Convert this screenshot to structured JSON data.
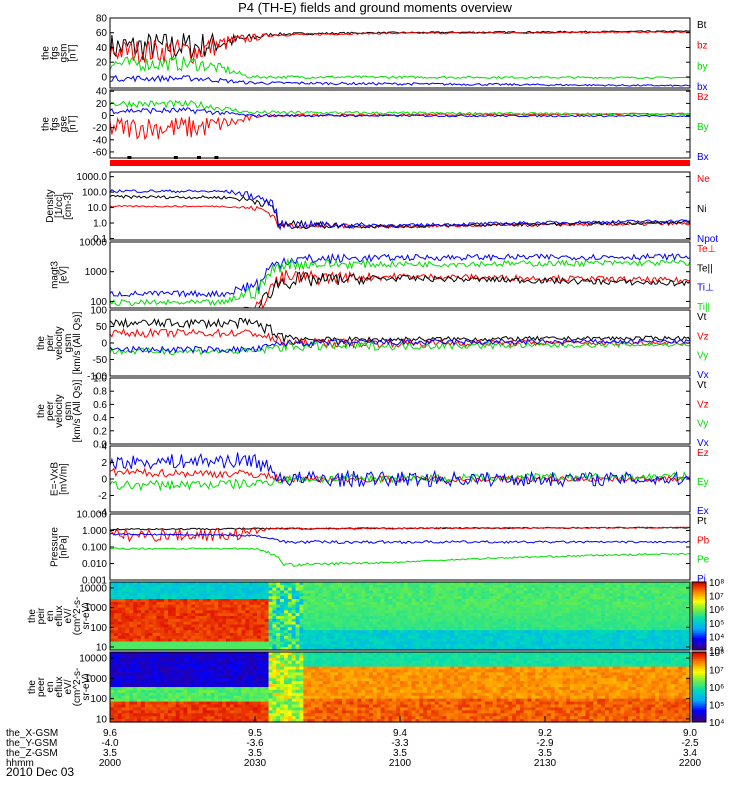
{
  "title": "P4 (TH-E) fields and ground moments overview",
  "date_label": "2010 Dec 03",
  "chart_data": [
    {
      "type": "line",
      "ylabel_lines": [
        "the",
        "fgs",
        "gsm",
        "[nT]"
      ],
      "ylim": [
        -15,
        80
      ],
      "ticks": [
        0,
        20,
        40,
        60,
        80
      ],
      "tick_labels": [
        "0",
        "20",
        "40",
        "60",
        "80"
      ],
      "series": [
        {
          "name": "Bt",
          "color": "#000000",
          "profile": [
            [
              0,
              40,
              20
            ],
            [
              0.15,
              42,
              20
            ],
            [
              0.22,
              50,
              8
            ],
            [
              0.28,
              58,
              2
            ],
            [
              0.45,
              60,
              1
            ],
            [
              0.75,
              61,
              1
            ],
            [
              1,
              62,
              1
            ]
          ]
        },
        {
          "name": "bz",
          "color": "#ff0000",
          "profile": [
            [
              0,
              35,
              15
            ],
            [
              0.15,
              35,
              18
            ],
            [
              0.22,
              50,
              8
            ],
            [
              0.28,
              57,
              2
            ],
            [
              0.45,
              59,
              1
            ],
            [
              0.75,
              60,
              1
            ],
            [
              1,
              61,
              1
            ]
          ]
        },
        {
          "name": "by",
          "color": "#00dd00",
          "profile": [
            [
              0,
              18,
              10
            ],
            [
              0.15,
              18,
              10
            ],
            [
              0.2,
              10,
              6
            ],
            [
              0.24,
              0,
              2
            ],
            [
              1,
              -1,
              1
            ]
          ]
        },
        {
          "name": "bx",
          "color": "#0000ff",
          "profile": [
            [
              0,
              -2,
              4
            ],
            [
              0.15,
              -2,
              4
            ],
            [
              0.24,
              -8,
              2
            ],
            [
              1,
              -12,
              1
            ]
          ]
        }
      ]
    },
    {
      "type": "line",
      "ylabel_lines": [
        "the",
        "fgs",
        "gse",
        "[nT]"
      ],
      "ylim": [
        -70,
        42
      ],
      "ticks": [
        -60,
        -40,
        -20,
        0,
        20,
        40
      ],
      "tick_labels": [
        "-60",
        "-40",
        "-20",
        "0",
        "20",
        "40"
      ],
      "series": [
        {
          "name": "Bz",
          "color": "#ff0000",
          "profile": [
            [
              0,
              -20,
              18
            ],
            [
              0.15,
              -20,
              20
            ],
            [
              0.22,
              -10,
              8
            ],
            [
              0.26,
              0,
              2
            ],
            [
              1,
              3,
              1
            ]
          ]
        },
        {
          "name": "By",
          "color": "#00dd00",
          "profile": [
            [
              0,
              20,
              6
            ],
            [
              0.15,
              18,
              6
            ],
            [
              0.24,
              5,
              3
            ],
            [
              1,
              2,
              1
            ]
          ]
        },
        {
          "name": "Bx",
          "color": "#0000ff",
          "profile": [
            [
              0,
              8,
              5
            ],
            [
              0.15,
              8,
              5
            ],
            [
              0.24,
              0,
              2
            ],
            [
              1,
              -1,
              1
            ]
          ]
        }
      ]
    },
    {
      "type": "line",
      "log": true,
      "ylabel_lines": [
        "Density",
        "[1/cc]",
        "[cm-3]"
      ],
      "ylim": [
        0.08,
        2000
      ],
      "ticks": [
        0.1,
        1,
        10,
        100,
        1000
      ],
      "tick_labels": [
        "0.1",
        "1.0",
        "10.0",
        "100.0",
        "1000.0"
      ],
      "series": [
        {
          "name": "Ne",
          "color": "#ff0000",
          "profile": [
            [
              0,
              12,
              0.05
            ],
            [
              0.2,
              12,
              0.05
            ],
            [
              0.26,
              8,
              0.2
            ],
            [
              0.29,
              0.7,
              0.2
            ],
            [
              0.5,
              0.6,
              0.1
            ],
            [
              1,
              0.9,
              0.1
            ]
          ]
        },
        {
          "name": "Ni",
          "color": "#000000",
          "profile": [
            [
              0,
              50,
              0.1
            ],
            [
              0.2,
              45,
              0.1
            ],
            [
              0.26,
              25,
              0.3
            ],
            [
              0.29,
              0.8,
              0.3
            ],
            [
              0.5,
              0.6,
              0.1
            ],
            [
              1,
              1.1,
              0.1
            ]
          ]
        },
        {
          "name": "Npot",
          "color": "#0000ff",
          "profile": [
            [
              0,
              120,
              0.1
            ],
            [
              0.2,
              110,
              0.1
            ],
            [
              0.26,
              40,
              0.3
            ],
            [
              0.29,
              0.8,
              0.3
            ],
            [
              0.5,
              0.7,
              0.1
            ],
            [
              1,
              1.4,
              0.1
            ]
          ]
        }
      ]
    },
    {
      "type": "line",
      "log": true,
      "ylabel_lines": [
        "magt3",
        "[eV]"
      ],
      "ylim": [
        60,
        10000
      ],
      "ticks": [
        100,
        1000,
        10000
      ],
      "tick_labels": [
        "100",
        "1000",
        "10000"
      ],
      "series": [
        {
          "name": "Te⊥",
          "color": "#ff0000",
          "profile": [
            [
              0,
              25,
              0.1
            ],
            [
              0.2,
              25,
              0.1
            ],
            [
              0.26,
              60,
              0.3
            ],
            [
              0.3,
              600,
              0.3
            ],
            [
              0.5,
              700,
              0.1
            ],
            [
              1,
              500,
              0.1
            ]
          ]
        },
        {
          "name": "Te||",
          "color": "#000000",
          "profile": [
            [
              0,
              20,
              0.1
            ],
            [
              0.2,
              20,
              0.1
            ],
            [
              0.26,
              50,
              0.3
            ],
            [
              0.3,
              500,
              0.3
            ],
            [
              0.5,
              600,
              0.1
            ],
            [
              1,
              400,
              0.1
            ]
          ]
        },
        {
          "name": "Ti⊥",
          "color": "#0000ff",
          "profile": [
            [
              0,
              180,
              0.1
            ],
            [
              0.2,
              180,
              0.1
            ],
            [
              0.26,
              400,
              0.3
            ],
            [
              0.3,
              2500,
              0.2
            ],
            [
              0.5,
              3000,
              0.1
            ],
            [
              1,
              3200,
              0.1
            ]
          ]
        },
        {
          "name": "Ti||",
          "color": "#00dd00",
          "profile": [
            [
              0,
              90,
              0.1
            ],
            [
              0.2,
              90,
              0.1
            ],
            [
              0.26,
              250,
              0.3
            ],
            [
              0.3,
              1800,
              0.2
            ],
            [
              0.5,
              1800,
              0.1
            ],
            [
              1,
              2000,
              0.1
            ]
          ]
        }
      ]
    },
    {
      "type": "line",
      "ylabel_lines": [
        "the",
        "peir",
        "velocity",
        "gsm",
        "[km/s (All Qs)]"
      ],
      "ylim": [
        -100,
        100
      ],
      "ticks": [
        -100,
        -50,
        0,
        50,
        100
      ],
      "tick_labels": [
        "-100",
        "-50",
        "0",
        "50",
        "100"
      ],
      "series": [
        {
          "name": "Vt",
          "color": "#000000",
          "profile": [
            [
              0,
              60,
              12
            ],
            [
              0.25,
              60,
              15
            ],
            [
              0.3,
              20,
              20
            ],
            [
              0.35,
              10,
              8
            ],
            [
              1,
              15,
              6
            ]
          ]
        },
        {
          "name": "Vz",
          "color": "#ff0000",
          "profile": [
            [
              0,
              30,
              12
            ],
            [
              0.25,
              30,
              12
            ],
            [
              0.3,
              0,
              15
            ],
            [
              1,
              0,
              5
            ]
          ]
        },
        {
          "name": "Vy",
          "color": "#00dd00",
          "profile": [
            [
              0,
              -25,
              10
            ],
            [
              0.25,
              -25,
              10
            ],
            [
              0.3,
              -10,
              15
            ],
            [
              1,
              -5,
              5
            ]
          ]
        },
        {
          "name": "Vx",
          "color": "#0000ff",
          "profile": [
            [
              0,
              -20,
              10
            ],
            [
              0.25,
              -20,
              10
            ],
            [
              0.3,
              0,
              10
            ],
            [
              1,
              5,
              6
            ]
          ]
        }
      ]
    },
    {
      "type": "line",
      "ylabel_lines": [
        "the",
        "peer",
        "velocity",
        "gsm",
        "[km/s (All Qs)]"
      ],
      "ylim": [
        0,
        1
      ],
      "ticks": [
        0,
        0.2,
        0.4,
        0.6,
        0.8,
        1.0
      ],
      "tick_labels": [
        "0.0",
        "0.2",
        "0.4",
        "0.6",
        "0.8",
        "1.0"
      ],
      "series": [
        {
          "name": "Vt",
          "color": "#000000",
          "profile": []
        },
        {
          "name": "Vz",
          "color": "#ff0000",
          "profile": []
        },
        {
          "name": "Vy",
          "color": "#00dd00",
          "profile": []
        },
        {
          "name": "Vx",
          "color": "#0000ff",
          "profile": []
        }
      ]
    },
    {
      "type": "line",
      "ylabel_lines": [
        "E=-VxB",
        "[mV/m]"
      ],
      "ylim": [
        -4,
        4
      ],
      "ticks": [
        -4,
        -2,
        0,
        2,
        4
      ],
      "tick_labels": [
        "-4",
        "-2",
        "0",
        "2",
        "4"
      ],
      "series": [
        {
          "name": "Ez",
          "color": "#ff0000",
          "profile": [
            [
              0,
              0.8,
              0.5
            ],
            [
              0.25,
              0.6,
              0.5
            ],
            [
              0.3,
              0,
              0.4
            ],
            [
              1,
              0,
              0.3
            ]
          ]
        },
        {
          "name": "Ey",
          "color": "#00dd00",
          "profile": [
            [
              0,
              -0.8,
              0.6
            ],
            [
              0.25,
              -0.6,
              0.6
            ],
            [
              0.3,
              0,
              0.5
            ],
            [
              1,
              0.3,
              0.5
            ]
          ]
        },
        {
          "name": "Ex",
          "color": "#0000ff",
          "profile": [
            [
              0,
              2,
              0.8
            ],
            [
              0.25,
              2.3,
              1
            ],
            [
              0.3,
              0,
              1
            ],
            [
              1,
              0,
              0.8
            ]
          ]
        }
      ]
    },
    {
      "type": "line",
      "log": true,
      "ylabel_lines": [
        "Pressure",
        "[nPa]"
      ],
      "ylim": [
        0.001,
        10
      ],
      "ticks": [
        0.001,
        0.01,
        0.1,
        1,
        10
      ],
      "tick_labels": [
        "0.001",
        "0.010",
        "0.100",
        "1.000",
        "10.000"
      ],
      "series": [
        {
          "name": "Pt",
          "color": "#000000",
          "profile": [
            [
              0,
              1.2,
              0.05
            ],
            [
              0.3,
              1.3,
              0.05
            ],
            [
              1,
              1.5,
              0.03
            ]
          ]
        },
        {
          "name": "Pb",
          "color": "#ff0000",
          "profile": [
            [
              0,
              0.5,
              0.4
            ],
            [
              0.22,
              0.6,
              0.4
            ],
            [
              0.28,
              1.3,
              0.05
            ],
            [
              1,
              1.5,
              0.03
            ]
          ]
        },
        {
          "name": "Pe",
          "color": "#00dd00",
          "profile": [
            [
              0,
              0.08,
              0.05
            ],
            [
              0.25,
              0.08,
              0.05
            ],
            [
              0.3,
              0.008,
              0.1
            ],
            [
              0.5,
              0.012,
              0.05
            ],
            [
              1,
              0.04,
              0.05
            ]
          ]
        },
        {
          "name": "Pi",
          "color": "#0000ff",
          "profile": [
            [
              0,
              0.6,
              0.05
            ],
            [
              0.25,
              0.5,
              0.05
            ],
            [
              0.3,
              0.2,
              0.1
            ],
            [
              1,
              0.2,
              0.05
            ]
          ]
        }
      ]
    },
    {
      "type": "heatmap",
      "ylabel_lines": [
        "the",
        "peir",
        "en",
        "eflux",
        "eV/",
        "(cm^2-s-",
        "sr-eV)"
      ],
      "log": true,
      "ylim": [
        7,
        20000
      ],
      "ticks": [
        10,
        100,
        1000,
        10000
      ],
      "tick_labels": [
        "10",
        "100",
        "1000",
        "10000"
      ],
      "colorbar_ticks": [
        "10³",
        "10⁴",
        "10⁵",
        "10⁶",
        "10⁷",
        "10⁸"
      ]
    },
    {
      "type": "heatmap",
      "ylabel_lines": [
        "the",
        "peer",
        "en",
        "eflux",
        "eV/",
        "(cm^2-s-",
        "sr-eV)"
      ],
      "log": true,
      "ylim": [
        7,
        20000
      ],
      "ticks": [
        10,
        100,
        1000,
        10000
      ],
      "tick_labels": [
        "10",
        "100",
        "1000",
        "10000"
      ],
      "colorbar_ticks": [
        "10⁴",
        "10⁵",
        "10⁶",
        "10⁷",
        "10⁸"
      ]
    }
  ],
  "x_axis": {
    "row_labels": [
      "the_X-GSM",
      "the_Y-GSM",
      "the_Z-GSM",
      "hhmm"
    ],
    "ticks": [
      {
        "x": "9.6",
        "y": "-4.0",
        "z": "3.5",
        "hhmm": "2000"
      },
      {
        "x": "9.5",
        "y": "-3.6",
        "z": "3.5",
        "hhmm": "2030"
      },
      {
        "x": "9.4",
        "y": "-3.3",
        "z": "3.5",
        "hhmm": "2100"
      },
      {
        "x": "9.2",
        "y": "-2.9",
        "z": "3.5",
        "hhmm": "2130"
      },
      {
        "x": "9.0",
        "y": "-2.5",
        "z": "3.4",
        "hhmm": "2200"
      }
    ]
  }
}
